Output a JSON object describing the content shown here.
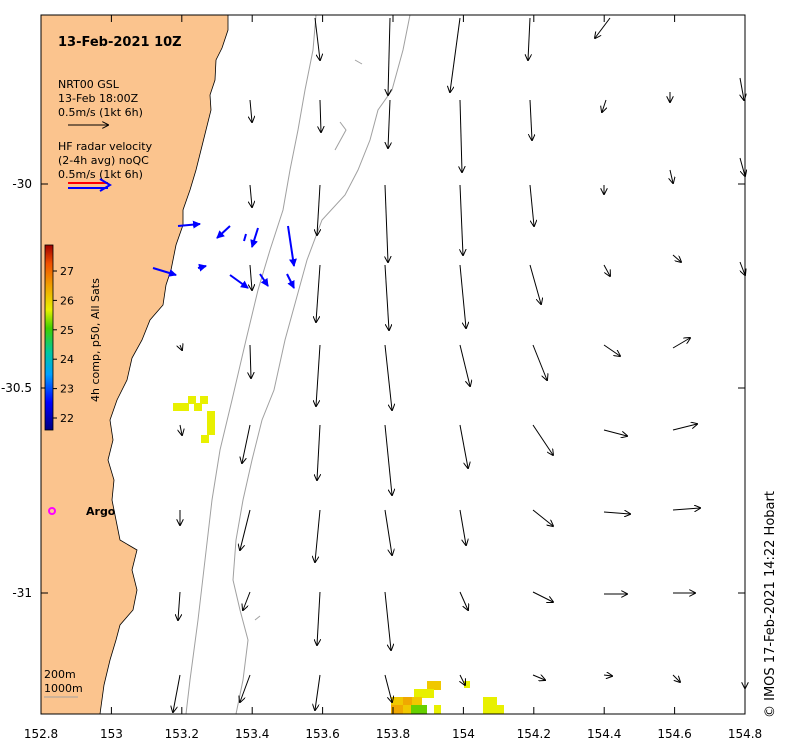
{
  "map": {
    "title": "13-Feb-2021 10Z",
    "legend": {
      "model_lines": [
        "NRT00 GSL",
        "13-Feb 18:00Z",
        "0.5m/s (1kt 6h)"
      ],
      "radar_lines": [
        "HF radar velocity",
        "(2-4h avg) noQC",
        "0.5m/s (1kt 6h)"
      ]
    },
    "colorbar": {
      "label": "4h comp, p50, All Sats",
      "ticks": [
        "27",
        "26",
        "25",
        "24",
        "23",
        "22"
      ]
    },
    "x_ticks": [
      "152.8",
      "153",
      "153.2",
      "153.4",
      "153.6",
      "153.8",
      "154",
      "154.2",
      "154.4",
      "154.6",
      "154.8"
    ],
    "y_ticks": [
      "-30",
      "-30.5",
      "-31"
    ],
    "argo_label": "Argo",
    "depth_labels": [
      "200m",
      "1000m"
    ],
    "credit": "© IMOS 17-Feb-2021 14:22 Hobart"
  },
  "colors": {
    "land": "#fbc48e",
    "model_arrow": "#000000",
    "radar_arrow": "#0000ff",
    "argo": "#ff00ff",
    "contour": "#a0a0a0"
  }
}
